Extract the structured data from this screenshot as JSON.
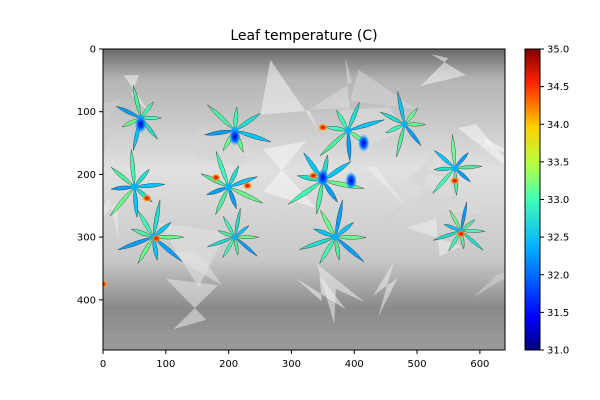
{
  "chart_data": {
    "type": "heatmap",
    "title": "Leaf temperature (C)",
    "xlabel": "",
    "ylabel": "",
    "xlim": [
      0,
      640
    ],
    "ylim": [
      480,
      0
    ],
    "x_ticks": [
      0,
      100,
      200,
      300,
      400,
      500,
      600
    ],
    "y_ticks": [
      0,
      100,
      200,
      300,
      400
    ],
    "colorbar": {
      "min": 31.0,
      "max": 35.0,
      "ticks": [
        "31.0",
        "31.5",
        "32.0",
        "32.5",
        "33.0",
        "33.5",
        "34.0",
        "34.5",
        "35.0"
      ],
      "colormap": "jet"
    },
    "background": "grayscale image",
    "plants": [
      {
        "cx": 60,
        "cy": 110,
        "scale": 0.8
      },
      {
        "cx": 50,
        "cy": 220,
        "scale": 0.9
      },
      {
        "cx": 80,
        "cy": 300,
        "scale": 0.9
      },
      {
        "cx": 210,
        "cy": 130,
        "scale": 0.9
      },
      {
        "cx": 200,
        "cy": 220,
        "scale": 0.9
      },
      {
        "cx": 210,
        "cy": 300,
        "scale": 0.7
      },
      {
        "cx": 390,
        "cy": 130,
        "scale": 0.9
      },
      {
        "cx": 350,
        "cy": 210,
        "scale": 1.0
      },
      {
        "cx": 370,
        "cy": 300,
        "scale": 0.9
      },
      {
        "cx": 480,
        "cy": 120,
        "scale": 0.8
      },
      {
        "cx": 560,
        "cy": 190,
        "scale": 0.8
      },
      {
        "cx": 570,
        "cy": 290,
        "scale": 0.7
      }
    ],
    "hotspots": [
      {
        "x": 70,
        "y": 238,
        "temp": 34.8
      },
      {
        "x": 85,
        "y": 302,
        "temp": 34.5
      },
      {
        "x": 180,
        "y": 205,
        "temp": 34.4
      },
      {
        "x": 230,
        "y": 218,
        "temp": 34.6
      },
      {
        "x": 350,
        "y": 125,
        "temp": 34.9
      },
      {
        "x": 335,
        "y": 202,
        "temp": 34.5
      },
      {
        "x": 560,
        "y": 210,
        "temp": 34.2
      },
      {
        "x": 570,
        "y": 295,
        "temp": 35.0
      },
      {
        "x": 0,
        "y": 375,
        "temp": 34.3
      }
    ],
    "coldspots": [
      {
        "x": 415,
        "y": 150,
        "temp": 31.2
      },
      {
        "x": 395,
        "y": 210,
        "temp": 31.4
      },
      {
        "x": 350,
        "y": 205,
        "temp": 31.6
      },
      {
        "x": 60,
        "y": 120,
        "temp": 31.9
      },
      {
        "x": 210,
        "y": 140,
        "temp": 31.8
      }
    ]
  }
}
